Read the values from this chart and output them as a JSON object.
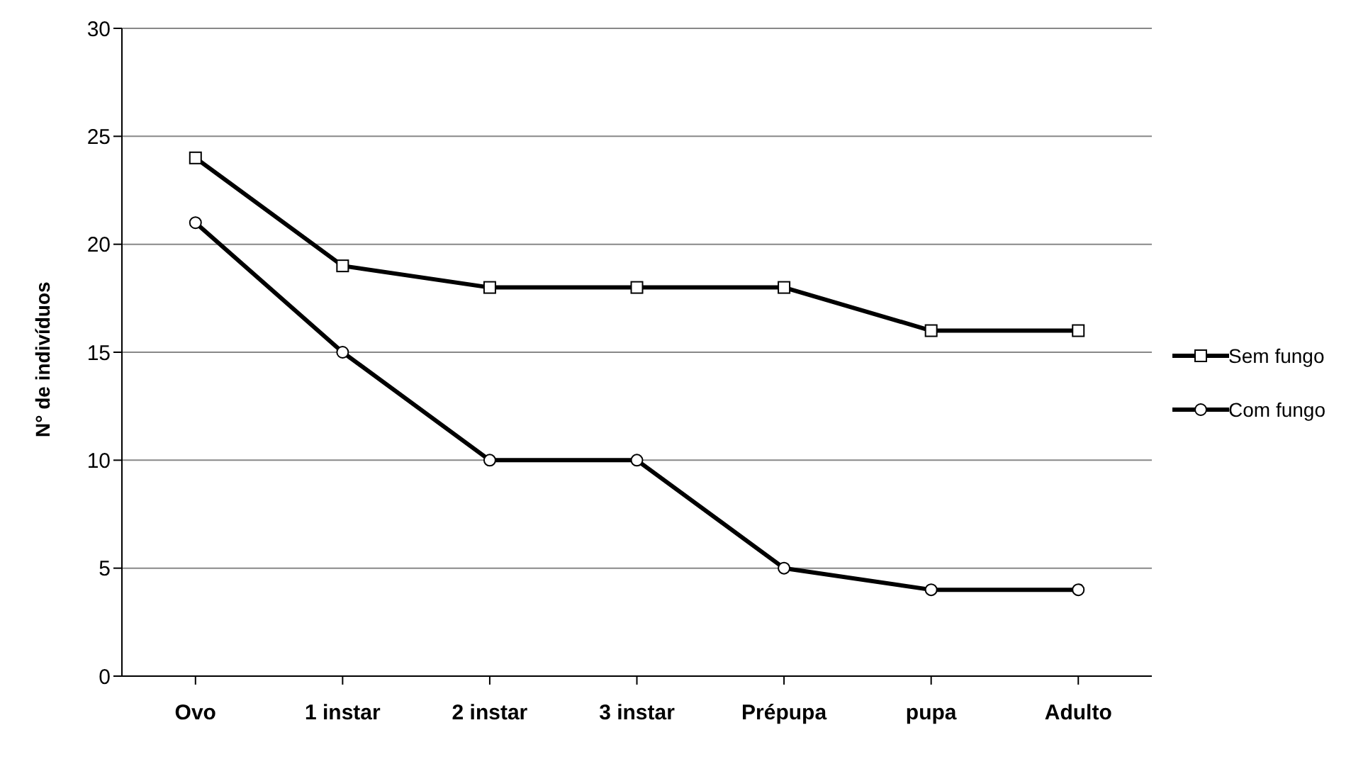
{
  "chart_data": {
    "type": "line",
    "ylabel": "N° de indivíduos",
    "categories": [
      "Ovo",
      "1 instar",
      "2 instar",
      "3 instar",
      "Prépupa",
      "pupa",
      "Adulto"
    ],
    "series": [
      {
        "name": "Sem fungo",
        "color": "#000000",
        "marker": "square",
        "values": [
          24,
          19,
          18,
          18,
          18,
          16,
          16
        ]
      },
      {
        "name": "Com fungo",
        "color": "#000000",
        "marker": "circle",
        "values": [
          21,
          15,
          10,
          10,
          5,
          4,
          4
        ]
      }
    ],
    "ylim": [
      0,
      30
    ],
    "yticks": [
      0,
      5,
      10,
      15,
      20,
      25,
      30
    ],
    "grid": "y",
    "legend": "right",
    "line_style": "solid"
  }
}
